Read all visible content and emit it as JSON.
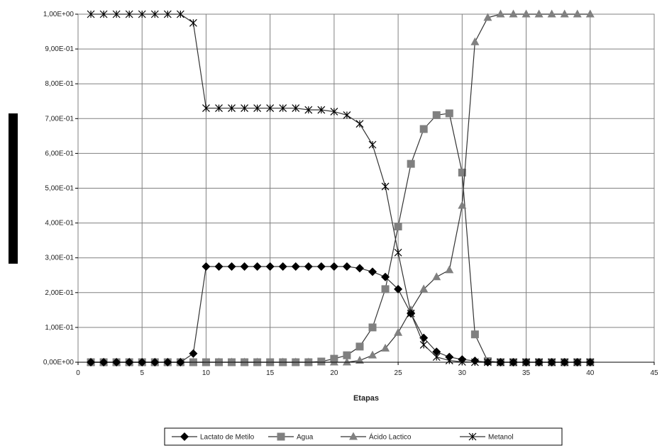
{
  "chart_data": {
    "type": "line",
    "title": "",
    "xlabel": "Etapas",
    "ylabel": "",
    "xlim": [
      0,
      45
    ],
    "ylim": [
      0,
      1
    ],
    "grid": true,
    "legend_position": "bottom",
    "x_ticks": [
      "0",
      "5",
      "10",
      "15",
      "20",
      "25",
      "30",
      "35",
      "40",
      "45"
    ],
    "y_ticks": [
      "0,00E+00",
      "1,00E-01",
      "2,00E-01",
      "3,00E-01",
      "4,00E-01",
      "5,00E-01",
      "6,00E-01",
      "7,00E-01",
      "8,00E-01",
      "9,00E-01",
      "1,00E+00"
    ],
    "x": [
      1,
      2,
      3,
      4,
      5,
      6,
      7,
      8,
      9,
      10,
      11,
      12,
      13,
      14,
      15,
      16,
      17,
      18,
      19,
      20,
      21,
      22,
      23,
      24,
      25,
      26,
      27,
      28,
      29,
      30,
      31,
      32,
      33,
      34,
      35,
      36,
      37,
      38,
      39,
      40
    ],
    "series": [
      {
        "name": "Lactato de Metilo",
        "marker": "diamond",
        "color": "#000000",
        "values": [
          0,
          0,
          0,
          0,
          0,
          0,
          0,
          0,
          0.025,
          0.275,
          0.275,
          0.275,
          0.275,
          0.275,
          0.275,
          0.275,
          0.275,
          0.275,
          0.275,
          0.275,
          0.275,
          0.27,
          0.26,
          0.245,
          0.21,
          0.14,
          0.07,
          0.03,
          0.015,
          0.008,
          0.004,
          0,
          0,
          0,
          0,
          0,
          0,
          0,
          0,
          0
        ]
      },
      {
        "name": "Agua",
        "marker": "square",
        "color": "#808080",
        "values": [
          0,
          0,
          0,
          0,
          0,
          0,
          0,
          0,
          0,
          0,
          0,
          0,
          0,
          0,
          0,
          0,
          0,
          0,
          0.002,
          0.01,
          0.02,
          0.045,
          0.1,
          0.21,
          0.39,
          0.57,
          0.67,
          0.71,
          0.715,
          0.545,
          0.08,
          0.003,
          0,
          0,
          0,
          0,
          0,
          0,
          0,
          0
        ]
      },
      {
        "name": "Ácido Lactico",
        "marker": "triangle",
        "color": "#808080",
        "values": [
          0,
          0,
          0,
          0,
          0,
          0,
          0,
          0,
          0,
          0,
          0,
          0,
          0,
          0,
          0,
          0,
          0,
          0,
          0,
          0,
          0,
          0.005,
          0.02,
          0.04,
          0.085,
          0.15,
          0.21,
          0.245,
          0.265,
          0.45,
          0.92,
          0.99,
          1,
          1,
          1,
          1,
          1,
          1,
          1,
          1
        ]
      },
      {
        "name": "Metanol",
        "marker": "star",
        "color": "#000000",
        "values": [
          1,
          1,
          1,
          1,
          1,
          1,
          1,
          1,
          0.975,
          0.73,
          0.73,
          0.73,
          0.73,
          0.73,
          0.73,
          0.73,
          0.73,
          0.725,
          0.725,
          0.72,
          0.71,
          0.685,
          0.625,
          0.505,
          0.315,
          0.14,
          0.05,
          0.015,
          0.005,
          0.001,
          0,
          0,
          0,
          0,
          0,
          0,
          0,
          0,
          0,
          0
        ]
      }
    ]
  }
}
